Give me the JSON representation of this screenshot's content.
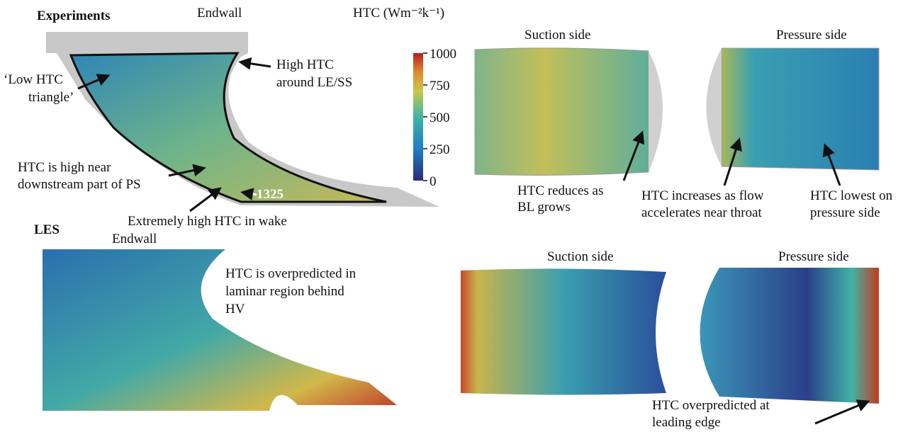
{
  "experiments": {
    "label": "Experiments",
    "endwall": "Endwall",
    "suction_side": "Suction side",
    "pressure_side": "Pressure side",
    "annotations": [
      {
        "lines": [
          "‘Low HTC",
          "triangle’"
        ]
      },
      {
        "lines": [
          "High HTC",
          "around LE/SS"
        ]
      },
      {
        "lines": [
          "HTC is high near",
          "downstream part of PS"
        ]
      },
      {
        "lines": [
          "1325"
        ]
      },
      {
        "lines": [
          "Extremely high HTC in wake"
        ]
      },
      {
        "lines": [
          "HTC reduces as",
          "BL grows"
        ]
      },
      {
        "lines": [
          "HTC increases as flow",
          "accelerates near throat"
        ]
      },
      {
        "lines": [
          "HTC lowest on",
          "pressure side"
        ]
      }
    ]
  },
  "colorbar": {
    "label": "HTC (Wm⁻²k⁻¹)",
    "lim": [
      0,
      1000
    ],
    "ticks": [
      0,
      250,
      500,
      750,
      1000
    ]
  },
  "les": {
    "label": "LES",
    "endwall": "Endwall",
    "suction_side": "Suction side",
    "pressure_side": "Pressure side",
    "annotations": [
      {
        "lines": [
          "HTC is overpredicted in",
          "laminar region behind",
          "HV"
        ]
      },
      {
        "lines": [
          "HTC overpredicted at",
          "leading edge"
        ]
      }
    ]
  }
}
